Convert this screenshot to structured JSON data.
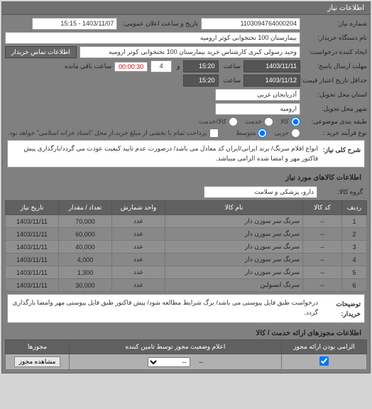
{
  "header": {
    "title": "اطلاعات نیاز"
  },
  "need": {
    "number_label": "شماره نیاز:",
    "number": "1103094764000204",
    "announce_label": "تاریخ و ساعت اعلان عمومی:",
    "announce": "1403/11/07 - 15:15",
    "buyer_label": "نام دستگاه خریدار:",
    "buyer": "بیمارستان 100 تختخوابی کوثر ارومیه",
    "creator_label": "ایجاد کننده درخواست:",
    "creator": "وحید رسولی کبری کارشناس خرید بیمارستان 100 تختخوابی کوثر ارومیه",
    "contact_btn": "اطلاعات تماس خریدار",
    "deadline_label": "مهلت ارسال پاسخ:",
    "deadline_to_label": "تا تاریخ:",
    "deadline_date": "1403/11/11",
    "time_label": "ساعت",
    "deadline_time": "15:20",
    "and": "و",
    "remain_count": "4",
    "timer": "00:00:30",
    "remain_label": "ساعت باقی مانده",
    "validity_label": "حداقل تاریخ اعتبار قیمت: تا تاریخ:",
    "validity_date": "1403/11/12",
    "validity_time": "15:20",
    "province_label": "استان محل تحویل:",
    "province": "آذربایجان غربی",
    "city_label": "شهر محل تحویل:",
    "city": "ارومیه",
    "category_label": "طبقه بندی موضوعی:",
    "cat_all": "کالا",
    "cat_service": "خدمت",
    "cat_both": "کالا/خدمت",
    "process_label": "نوع فرآیند خرید :",
    "proc_small": "جزیی",
    "proc_medium": "متوسط",
    "payment_note": "پرداخت تمام یا بخشی از مبلغ خرید،از محل \"اسناد خزانه اسلامی\" خواهد بود."
  },
  "summary": {
    "label": "شرح کلی نیاز:",
    "text": "انواع اقلام سرنگ/ برند ایرانی/ایران کد معادل می باشد/ درصورت عدم تایید کیفیت عودت می گردد/بارگذاری پیش فاکتور مهر و امضا شده الزامی میباشد."
  },
  "items_section": {
    "title": "اطلاعات کالاهای مورد نیاز",
    "group_label": "گروه کالا:",
    "group": "دارو، پزشکی و سلامت",
    "cols": {
      "row": "ردیف",
      "code": "کد کالا",
      "name": "نام کالا",
      "unit": "واحد شمارش",
      "qty": "تعداد / مقدار",
      "date": "تاریخ نیاز"
    },
    "rows": [
      {
        "n": "1",
        "code": "--",
        "name": "سرنگ سر سوزن دار",
        "unit": "عدد",
        "qty": "70,000",
        "date": "1403/11/11"
      },
      {
        "n": "2",
        "code": "--",
        "name": "سرنگ سر سوزن دار",
        "unit": "عدد",
        "qty": "60,000",
        "date": "1403/11/11"
      },
      {
        "n": "3",
        "code": "--",
        "name": "سرنگ سر سوزن دار",
        "unit": "عدد",
        "qty": "40,000",
        "date": "1403/11/11"
      },
      {
        "n": "4",
        "code": "--",
        "name": "سرنگ سر سوزن دار",
        "unit": "عدد",
        "qty": "4,000",
        "date": "1403/11/11"
      },
      {
        "n": "5",
        "code": "--",
        "name": "سرنگ سر سوزن دار",
        "unit": "عدد",
        "qty": "1,300",
        "date": "1403/11/11"
      },
      {
        "n": "6",
        "code": "--",
        "name": "سرنگ انسولین",
        "unit": "عدد",
        "qty": "30,000",
        "date": "1403/11/11"
      }
    ],
    "note_label": "توضیحات خریدار:",
    "note": "درخواست طبق فایل پیوستی می باشد/ برگ شرایط مطالعه شود/ پیش فاکتور طبق فایل پیوستی مهر وامضا بارگذاری گردد."
  },
  "license": {
    "title": "اطلاعات مجوزهای ارائه خدمت / کالا",
    "cols": {
      "required": "الزامی بودن ارائه مجوز",
      "status": "اعلام وضعیت مجوز توسط تامین کننده",
      "action": "مجوزها"
    },
    "status_val": "--",
    "view_btn": "مشاهده مجوز",
    "dropdown": "--"
  }
}
